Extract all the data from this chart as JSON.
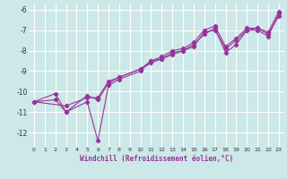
{
  "xlabel": "Windchill (Refroidissement éolien,°C)",
  "bg_color": "#cce8e8",
  "grid_color": "#ffffff",
  "line_color": "#993399",
  "xlim": [
    -0.5,
    23.5
  ],
  "ylim": [
    -12.7,
    -5.7
  ],
  "xticks": [
    0,
    1,
    2,
    3,
    4,
    5,
    6,
    7,
    8,
    9,
    10,
    11,
    12,
    13,
    14,
    15,
    16,
    17,
    18,
    19,
    20,
    21,
    22,
    23
  ],
  "yticks": [
    -12,
    -11,
    -10,
    -9,
    -8,
    -7,
    -6
  ],
  "series1_x": [
    0,
    2,
    3,
    5,
    6,
    7,
    8,
    10,
    11,
    12,
    13,
    14,
    15,
    16,
    17,
    18,
    19,
    20,
    21,
    22,
    23
  ],
  "series1_y": [
    -10.5,
    -10.1,
    -11.0,
    -10.5,
    -12.4,
    -9.7,
    -9.4,
    -9.0,
    -8.5,
    -8.4,
    -8.1,
    -8.0,
    -7.7,
    -7.2,
    -6.9,
    -8.1,
    -7.7,
    -7.0,
    -7.0,
    -7.3,
    -6.2
  ],
  "series2_x": [
    0,
    2,
    3,
    5,
    6,
    7,
    8,
    10,
    11,
    12,
    13,
    14,
    15,
    16,
    17,
    18,
    19,
    20,
    21,
    22,
    23
  ],
  "series2_y": [
    -10.5,
    -10.4,
    -11.0,
    -10.2,
    -10.4,
    -9.6,
    -9.3,
    -8.9,
    -8.6,
    -8.4,
    -8.2,
    -8.0,
    -7.8,
    -7.1,
    -7.0,
    -7.9,
    -7.5,
    -7.0,
    -6.9,
    -7.2,
    -6.3
  ],
  "series3_x": [
    0,
    3,
    5,
    6,
    7,
    8,
    10,
    11,
    12,
    13,
    14,
    15,
    16,
    17,
    18,
    19,
    20,
    21,
    22,
    23
  ],
  "series3_y": [
    -10.5,
    -10.7,
    -10.3,
    -10.3,
    -9.5,
    -9.3,
    -8.9,
    -8.5,
    -8.3,
    -8.0,
    -7.9,
    -7.6,
    -7.0,
    -6.8,
    -7.8,
    -7.4,
    -6.9,
    -6.9,
    -7.1,
    -6.1
  ]
}
